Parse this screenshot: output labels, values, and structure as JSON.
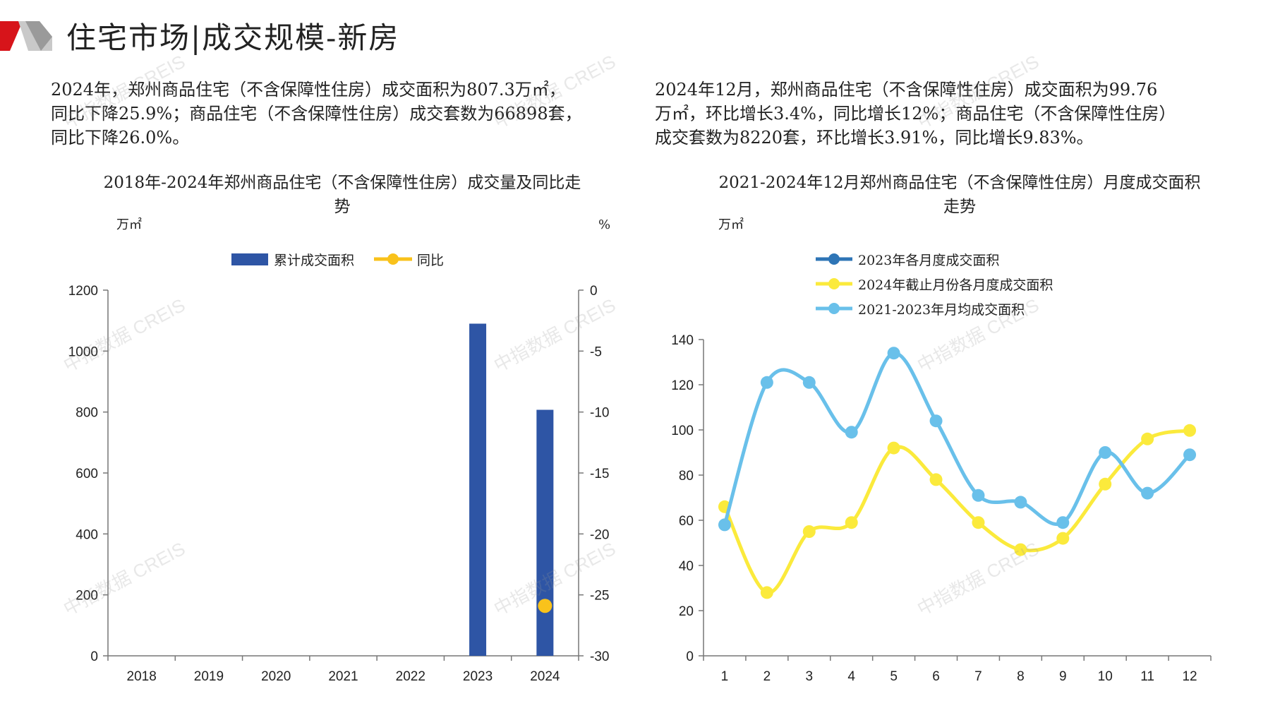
{
  "header": {
    "title": "住宅市场|成交规模-新房",
    "brand_color": "#d7141a"
  },
  "paragraphs": {
    "left": [
      "2024年，郑州商品住宅（不含保障性住房）成交面积为807.3万㎡，",
      "同比下降25.9%；商品住宅（不含保障性住房）成交套数为66898套，",
      "同比下降26.0%。"
    ],
    "right": [
      "2024年12月，郑州商品住宅（不含保障性住房）成交面积为99.76",
      "万㎡，环比增长3.4%，同比增长12%；商品住宅（不含保障性住房）",
      "成交套数为8220套，环比增长3.91%，同比增长9.83%。"
    ]
  },
  "watermark": "中指数据 CREIS",
  "chart_data": [
    {
      "type": "bar",
      "title_lines": [
        "2018年-2024年郑州商品住宅（不含保障性住房）成交量及同比走",
        "势"
      ],
      "y_unit": "万㎡",
      "y2_unit": "%",
      "categories": [
        "2018",
        "2019",
        "2020",
        "2021",
        "2022",
        "2023",
        "2024"
      ],
      "ylim": [
        0,
        1200
      ],
      "yticks": [
        0,
        200,
        400,
        600,
        800,
        1000,
        1200
      ],
      "y2lim": [
        -30,
        0
      ],
      "y2ticks": [
        -30,
        -25,
        -20,
        -15,
        -10,
        -5,
        0
      ],
      "series": [
        {
          "name": "累计成交面积",
          "kind": "bar",
          "axis": "left",
          "color": "#2e55a5",
          "values": [
            null,
            null,
            null,
            null,
            null,
            1090,
            807.3
          ]
        },
        {
          "name": "同比",
          "kind": "line",
          "axis": "right",
          "color": "#f9c21b",
          "values": [
            null,
            null,
            null,
            null,
            null,
            null,
            -25.9
          ]
        }
      ],
      "legend": "top-center"
    },
    {
      "type": "line",
      "title_lines": [
        "2021-2024年12月郑州商品住宅（不含保障性住房）月度成交面积",
        "走势"
      ],
      "y_unit": "万㎡",
      "x": [
        "1",
        "2",
        "3",
        "4",
        "5",
        "6",
        "7",
        "8",
        "9",
        "10",
        "11",
        "12"
      ],
      "ylim": [
        0,
        140
      ],
      "yticks": [
        0,
        20,
        40,
        60,
        80,
        100,
        120,
        140
      ],
      "series": [
        {
          "name": "2023年各月度成交面积",
          "color": "#2e75b6",
          "values": [
            null,
            null,
            null,
            null,
            null,
            null,
            null,
            null,
            null,
            null,
            null,
            null
          ]
        },
        {
          "name": "2024年截止月份各月度成交面积",
          "color": "#fbea3c",
          "values": [
            66,
            28,
            55,
            59,
            92,
            78,
            59,
            47,
            52,
            76,
            96,
            99.76
          ]
        },
        {
          "name": "2021-2023年月均成交面积",
          "color": "#69c0ea",
          "values": [
            58,
            121,
            121,
            99,
            134,
            104,
            71,
            68,
            59,
            90,
            72,
            89
          ]
        }
      ],
      "legend": "top-left"
    }
  ]
}
